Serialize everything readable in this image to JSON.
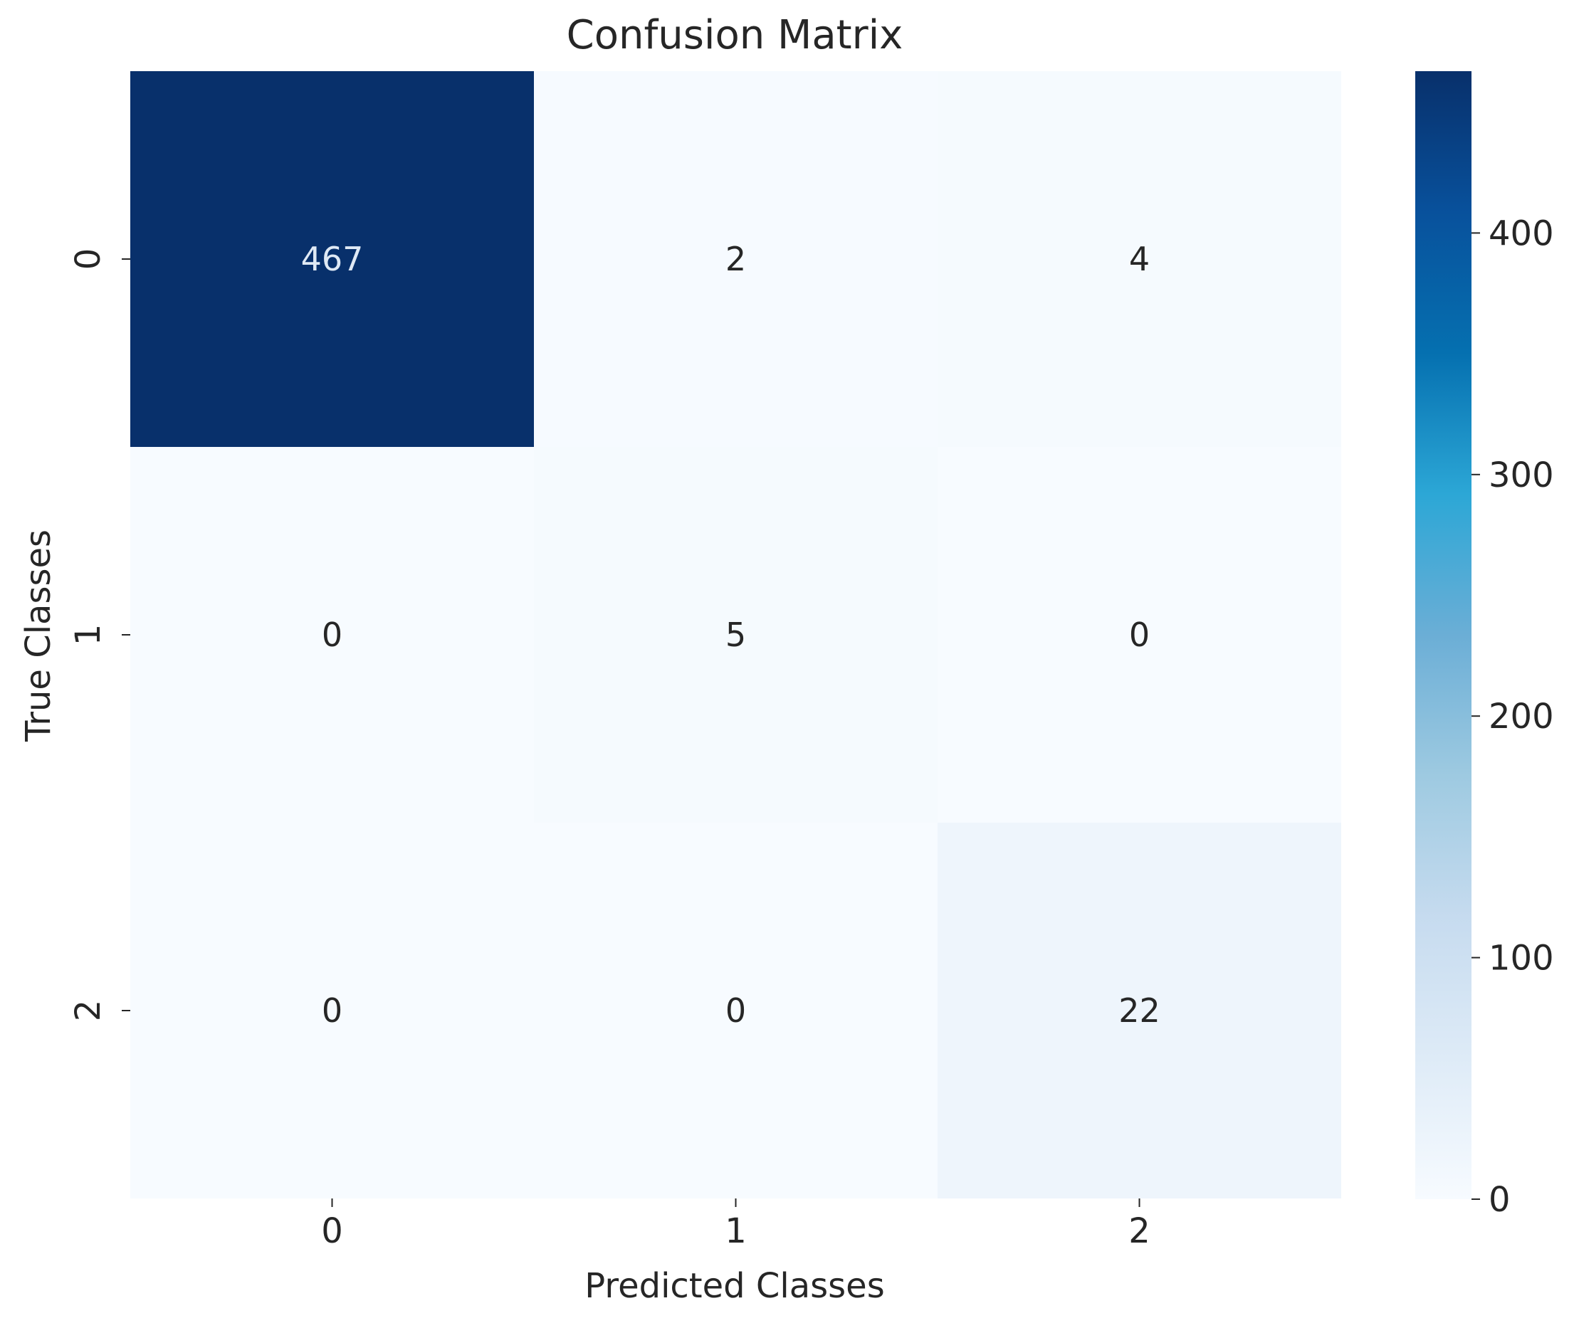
{
  "chart_data": {
    "type": "heatmap",
    "title": "Confusion Matrix",
    "xlabel": "Predicted Classes",
    "ylabel": "True Classes",
    "x_categories": [
      "0",
      "1",
      "2"
    ],
    "y_categories": [
      "0",
      "1",
      "2"
    ],
    "values": [
      [
        467,
        2,
        4
      ],
      [
        0,
        5,
        0
      ],
      [
        0,
        0,
        22
      ]
    ],
    "colormap": "Blues",
    "colorbar": {
      "min": 0,
      "max": 467,
      "ticks": [
        0,
        100,
        200,
        300,
        400
      ]
    },
    "cell_labels": [
      [
        "467",
        "2",
        "4"
      ],
      [
        "0",
        "5",
        "0"
      ],
      [
        "0",
        "0",
        "22"
      ]
    ],
    "colorbar_tick_labels": [
      "0",
      "100",
      "200",
      "300",
      "400"
    ]
  }
}
